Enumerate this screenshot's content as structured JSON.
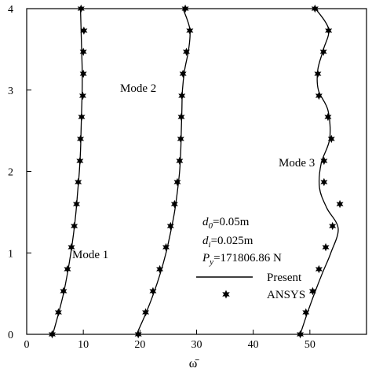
{
  "chart_data": {
    "type": "line",
    "xlabel": "ω̄",
    "ylabel": "",
    "xlim": [
      0,
      60
    ],
    "ylim": [
      0,
      4
    ],
    "x_ticks": [
      0,
      10,
      20,
      30,
      40,
      50
    ],
    "y_ticks": [
      0,
      1,
      2,
      3,
      4
    ],
    "grid": false,
    "legend": {
      "placement": "lower-right",
      "entries": [
        {
          "label": "Present",
          "marker": "line"
        },
        {
          "label": "ANSYS",
          "marker": "star"
        }
      ]
    },
    "annotations": {
      "d0": "d",
      "d0_sub": "0",
      "d0_val": "=0.05m",
      "di": "d",
      "di_sub": "i",
      "di_val": "=0.025m",
      "py": "P",
      "py_sub": "y",
      "py_val": "=171806.86 N"
    },
    "series": [
      {
        "name": "Mode 1",
        "label": "Mode 1",
        "line": [
          [
            4.6,
            0
          ],
          [
            5.6,
            0.25
          ],
          [
            6.5,
            0.5
          ],
          [
            7.2,
            0.75
          ],
          [
            7.8,
            1.0
          ],
          [
            8.3,
            1.25
          ],
          [
            8.7,
            1.5
          ],
          [
            9.0,
            1.75
          ],
          [
            9.3,
            2.0
          ],
          [
            9.5,
            2.25
          ],
          [
            9.6,
            2.5
          ],
          [
            9.7,
            2.75
          ],
          [
            9.8,
            3.0
          ],
          [
            9.8,
            3.25
          ],
          [
            9.7,
            3.5
          ],
          [
            9.6,
            3.75
          ],
          [
            9.5,
            4.0
          ]
        ],
        "ansys": [
          [
            4.5,
            0.0
          ],
          [
            5.6,
            0.27
          ],
          [
            6.5,
            0.53
          ],
          [
            7.2,
            0.8
          ],
          [
            7.9,
            1.07
          ],
          [
            8.4,
            1.33
          ],
          [
            8.8,
            1.6
          ],
          [
            9.1,
            1.87
          ],
          [
            9.4,
            2.13
          ],
          [
            9.5,
            2.4
          ],
          [
            9.7,
            2.67
          ],
          [
            9.9,
            2.93
          ],
          [
            10.0,
            3.2
          ],
          [
            10.0,
            3.47
          ],
          [
            10.1,
            3.73
          ],
          [
            9.6,
            4.0
          ]
        ]
      },
      {
        "name": "Mode 2",
        "label": "Mode 2",
        "line": [
          [
            19.4,
            0
          ],
          [
            21.0,
            0.25
          ],
          [
            22.4,
            0.5
          ],
          [
            23.6,
            0.75
          ],
          [
            24.6,
            1.0
          ],
          [
            25.4,
            1.25
          ],
          [
            26.1,
            1.5
          ],
          [
            26.6,
            1.75
          ],
          [
            27.0,
            2.0
          ],
          [
            27.2,
            2.25
          ],
          [
            27.3,
            2.5
          ],
          [
            27.4,
            2.75
          ],
          [
            27.5,
            3.0
          ],
          [
            27.9,
            3.25
          ],
          [
            28.6,
            3.5
          ],
          [
            28.8,
            3.75
          ],
          [
            27.6,
            4.0
          ]
        ],
        "ansys": [
          [
            19.7,
            0.0
          ],
          [
            21.0,
            0.27
          ],
          [
            22.3,
            0.53
          ],
          [
            23.5,
            0.8
          ],
          [
            24.6,
            1.07
          ],
          [
            25.4,
            1.33
          ],
          [
            26.1,
            1.6
          ],
          [
            26.6,
            1.87
          ],
          [
            27.0,
            2.13
          ],
          [
            27.2,
            2.4
          ],
          [
            27.3,
            2.67
          ],
          [
            27.4,
            2.93
          ],
          [
            27.6,
            3.2
          ],
          [
            28.2,
            3.47
          ],
          [
            28.8,
            3.73
          ],
          [
            28.0,
            4.0
          ]
        ]
      },
      {
        "name": "Mode 3",
        "label": "Mode 3",
        "line": [
          [
            48.3,
            0
          ],
          [
            49.5,
            0.25
          ],
          [
            50.8,
            0.5
          ],
          [
            52.2,
            0.75
          ],
          [
            53.7,
            1.0
          ],
          [
            55.0,
            1.3
          ],
          [
            53.0,
            1.55
          ],
          [
            51.7,
            1.8
          ],
          [
            52.0,
            2.1
          ],
          [
            53.5,
            2.4
          ],
          [
            53.2,
            2.75
          ],
          [
            51.5,
            3.0
          ],
          [
            51.4,
            3.25
          ],
          [
            52.4,
            3.5
          ],
          [
            53.3,
            3.75
          ],
          [
            51.0,
            4.0
          ]
        ],
        "ansys": [
          [
            48.3,
            0.0
          ],
          [
            49.3,
            0.27
          ],
          [
            50.5,
            0.53
          ],
          [
            51.6,
            0.8
          ],
          [
            52.8,
            1.07
          ],
          [
            54.0,
            1.33
          ],
          [
            55.3,
            1.6
          ],
          [
            52.5,
            1.87
          ],
          [
            52.5,
            2.13
          ],
          [
            53.8,
            2.4
          ],
          [
            53.2,
            2.67
          ],
          [
            51.6,
            2.93
          ],
          [
            51.4,
            3.2
          ],
          [
            52.4,
            3.47
          ],
          [
            53.3,
            3.73
          ],
          [
            50.9,
            4.0
          ]
        ]
      }
    ]
  }
}
